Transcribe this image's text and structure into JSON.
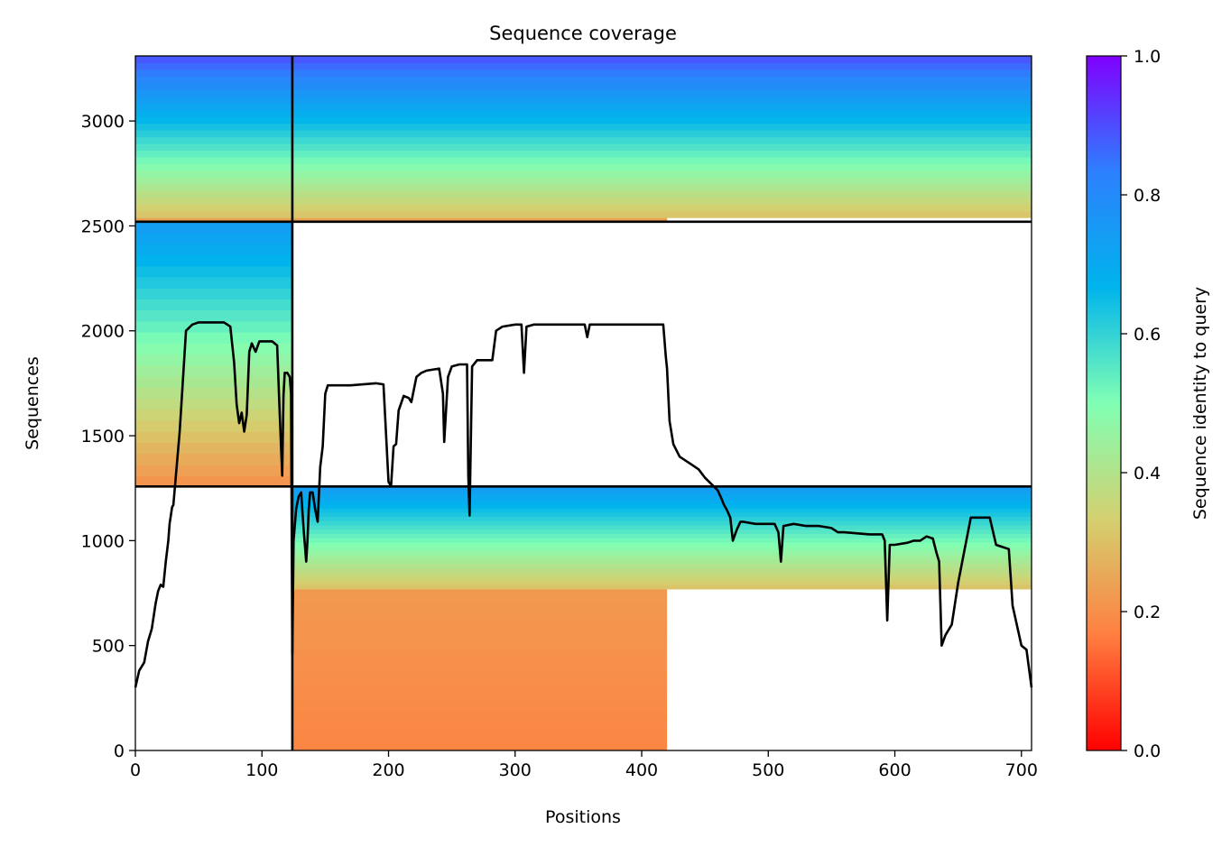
{
  "chart_data": {
    "type": "heatmap",
    "title": "Sequence coverage",
    "xlabel": "Positions",
    "ylabel": "Sequences",
    "xlim": [
      0,
      708
    ],
    "ylim": [
      0,
      3310
    ],
    "xticks": [
      0,
      100,
      200,
      300,
      400,
      500,
      600,
      700
    ],
    "yticks": [
      0,
      500,
      1000,
      1500,
      2000,
      2500,
      3000
    ],
    "grid": false,
    "colormap": "rainbow_r",
    "colorbar": {
      "label": "Sequence identity to query",
      "range": [
        0.0,
        1.0
      ],
      "ticks": [
        "0.0",
        "0.2",
        "0.4",
        "0.6",
        "0.8",
        "1.0"
      ],
      "stops": [
        "#ff0000",
        "#ff7f40",
        "#d4d070",
        "#80ffb4",
        "#00b4ec",
        "#2d80fd",
        "#8000ff"
      ]
    },
    "chain_breaks_x": [
      124
    ],
    "block_boundaries_y": [
      1258,
      2520
    ],
    "blocks": [
      {
        "rows": [
          0,
          1258
        ],
        "columns": [
          124,
          708
        ],
        "subgroups": [
          {
            "rows": [
              0,
              770
            ],
            "columns": [
              124,
              420
            ],
            "identity_range": [
              0.18,
              0.22
            ]
          },
          {
            "rows": [
              770,
              1258
            ],
            "columns": [
              124,
              708
            ],
            "identity_range": [
              0.3,
              0.75
            ]
          }
        ]
      },
      {
        "rows": [
          1258,
          2520
        ],
        "columns": [
          0,
          124
        ],
        "subgroups": [
          {
            "rows": [
              1258,
              2520
            ],
            "columns": [
              0,
              124
            ],
            "identity_range": [
              0.2,
              0.75
            ]
          }
        ]
      },
      {
        "rows": [
          2520,
          3310
        ],
        "columns": [
          0,
          708
        ],
        "subgroups": [
          {
            "rows": [
              2520,
              2540
            ],
            "columns": [
              0,
              420
            ],
            "identity_range": [
              0.22,
              0.25
            ]
          },
          {
            "rows": [
              2540,
              3310
            ],
            "columns": [
              0,
              708
            ],
            "identity_range": [
              0.3,
              0.9
            ]
          }
        ]
      }
    ],
    "series": [
      {
        "type": "line",
        "color": "#000000",
        "x": [
          0,
          3,
          7,
          10,
          13,
          16,
          18,
          20,
          22,
          24,
          26,
          27,
          28,
          29,
          30,
          35,
          40,
          45,
          50,
          55,
          60,
          65,
          70,
          75,
          78,
          80,
          82,
          84,
          86,
          88,
          90,
          92,
          95,
          98,
          100,
          104,
          108,
          112,
          114,
          116,
          117,
          118,
          120,
          122,
          123,
          124,
          125,
          127,
          129,
          131,
          133,
          135,
          136,
          137,
          138,
          140,
          142,
          144,
          146,
          148,
          150,
          152,
          155,
          160,
          170,
          180,
          190,
          196,
          200,
          202,
          204,
          206,
          208,
          212,
          216,
          218,
          222,
          226,
          230,
          240,
          243,
          244,
          247,
          250,
          256,
          262,
          263,
          264,
          266,
          270,
          275,
          282,
          285,
          290,
          300,
          305,
          307,
          309,
          315,
          325,
          340,
          355,
          357,
          359,
          380,
          400,
          417,
          419,
          420,
          422,
          425,
          430,
          440,
          445,
          450,
          455,
          460,
          463,
          465,
          467,
          470,
          472,
          475,
          478,
          480,
          490,
          500,
          505,
          508,
          510,
          512,
          520,
          530,
          540,
          550,
          555,
          560,
          580,
          590,
          592,
          594,
          596,
          600,
          610,
          615,
          620,
          625,
          630,
          633,
          635,
          637,
          640,
          645,
          650,
          660,
          670,
          675,
          680,
          685,
          690,
          693,
          700,
          704,
          708
        ],
        "y": [
          300,
          380,
          420,
          520,
          580,
          700,
          760,
          790,
          780,
          900,
          1000,
          1080,
          1120,
          1160,
          1170,
          1520,
          2000,
          2030,
          2040,
          2040,
          2040,
          2040,
          2040,
          2020,
          1850,
          1650,
          1560,
          1610,
          1520,
          1600,
          1900,
          1940,
          1900,
          1950,
          1950,
          1950,
          1950,
          1930,
          1610,
          1310,
          1690,
          1800,
          1800,
          1780,
          1700,
          460,
          1000,
          1150,
          1210,
          1230,
          1050,
          900,
          1000,
          1150,
          1230,
          1230,
          1150,
          1090,
          1350,
          1450,
          1700,
          1740,
          1740,
          1740,
          1740,
          1745,
          1750,
          1745,
          1280,
          1260,
          1450,
          1460,
          1620,
          1690,
          1680,
          1660,
          1780,
          1800,
          1810,
          1820,
          1700,
          1470,
          1780,
          1830,
          1840,
          1840,
          1310,
          1120,
          1830,
          1860,
          1860,
          1860,
          2000,
          2020,
          2030,
          2030,
          1800,
          2020,
          2030,
          2030,
          2030,
          2030,
          1970,
          2030,
          2030,
          2030,
          2030,
          1880,
          1820,
          1570,
          1460,
          1400,
          1360,
          1340,
          1300,
          1270,
          1240,
          1200,
          1170,
          1150,
          1110,
          1000,
          1050,
          1090,
          1090,
          1080,
          1080,
          1080,
          1040,
          900,
          1070,
          1080,
          1070,
          1070,
          1060,
          1040,
          1040,
          1030,
          1030,
          1000,
          620,
          980,
          980,
          990,
          1000,
          1000,
          1020,
          1010,
          940,
          900,
          500,
          550,
          600,
          800,
          1110,
          1110,
          1110,
          980,
          970,
          960,
          690,
          500,
          480,
          300
        ]
      }
    ]
  }
}
